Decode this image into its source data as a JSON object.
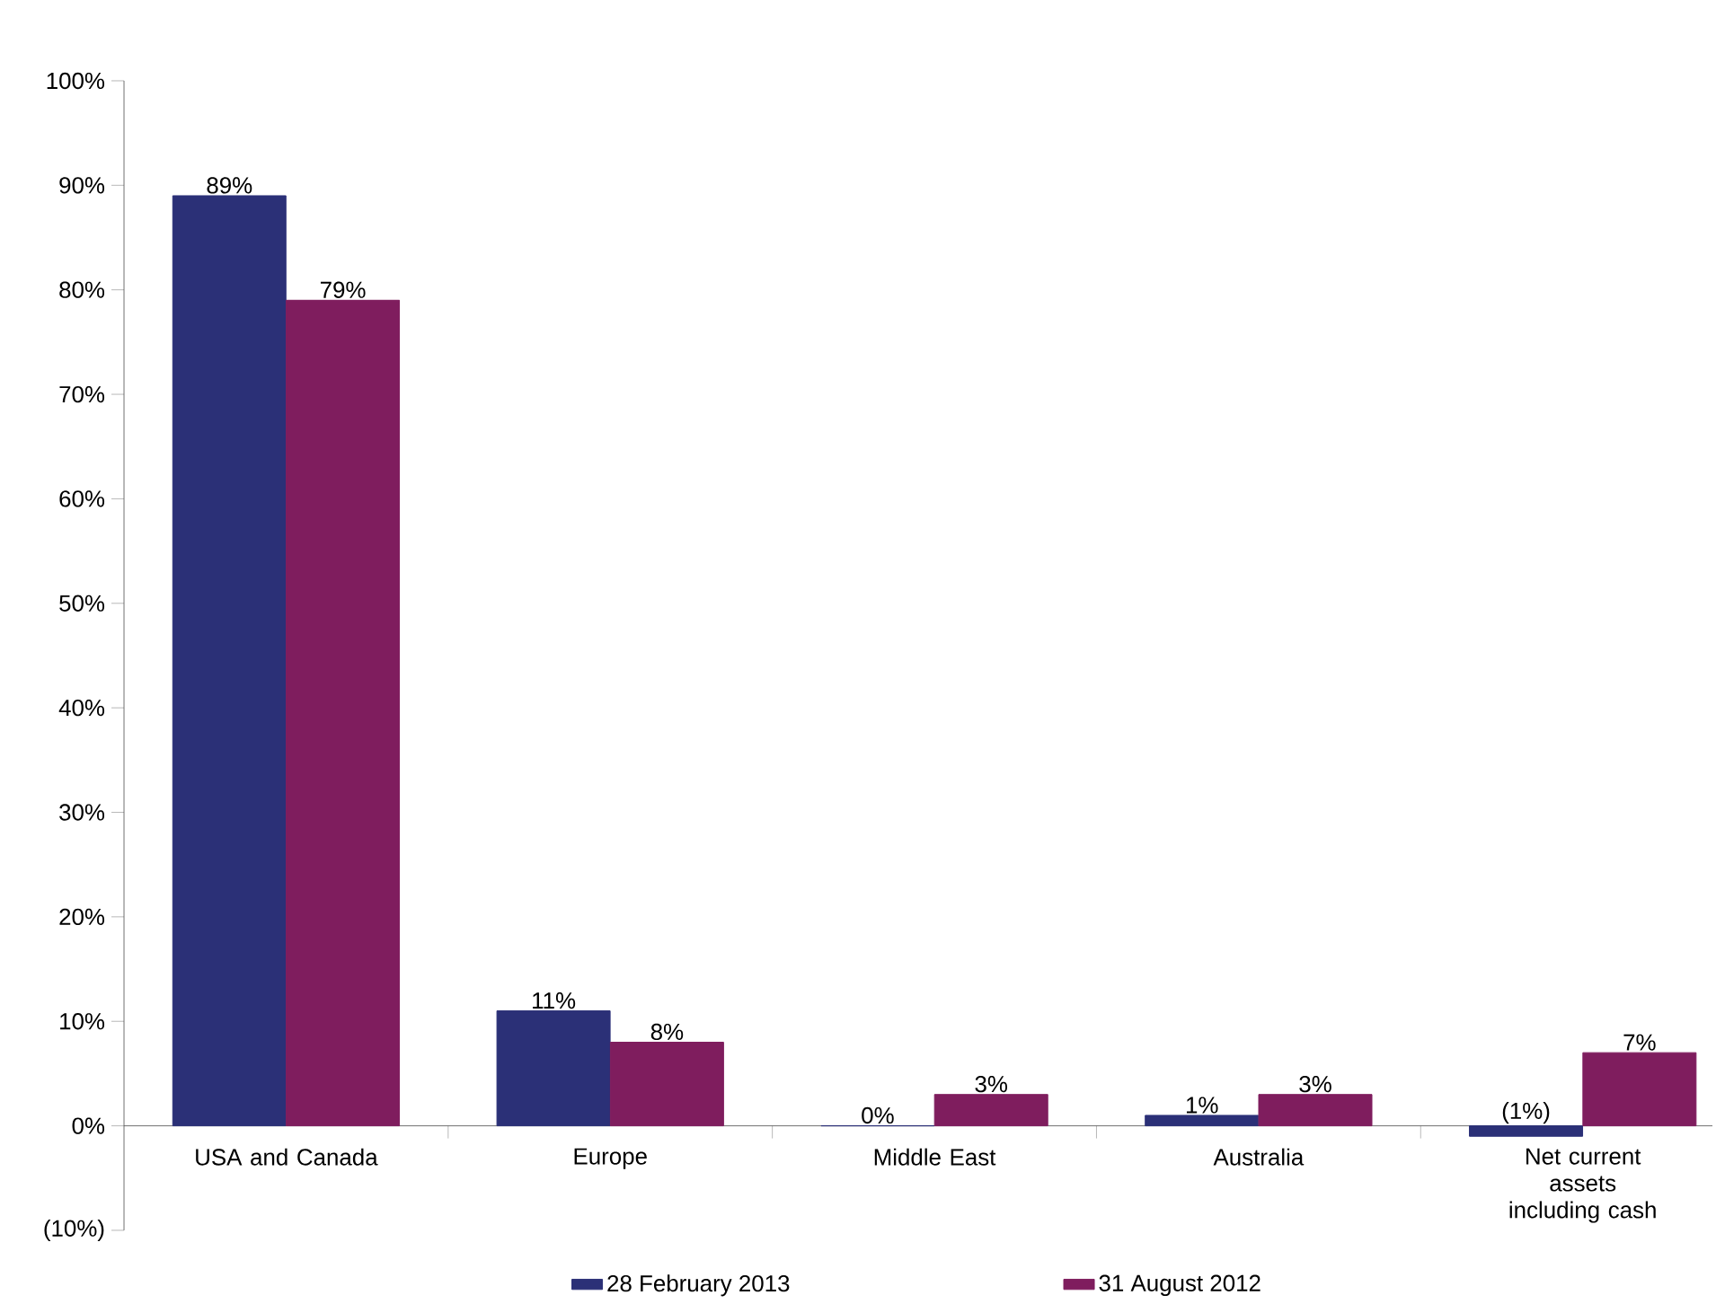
{
  "chart_data": {
    "type": "bar",
    "categories": [
      "USA and Canada",
      "Europe",
      "Middle East",
      "Australia",
      "Net current assets including cash"
    ],
    "series": [
      {
        "name": "28 February 2013",
        "color": "#2b3077",
        "values": [
          89,
          11,
          0,
          1,
          -1
        ],
        "value_labels": [
          "89%",
          "11%",
          "0%",
          "1%",
          "(1%)"
        ]
      },
      {
        "name": "31 August 2012",
        "color": "#7f1d5e",
        "values": [
          79,
          8,
          3,
          3,
          7
        ],
        "value_labels": [
          "79%",
          "8%",
          "3%",
          "3%",
          "7%"
        ]
      }
    ],
    "ylim": [
      -10,
      100
    ],
    "yticks": [
      {
        "value": -10,
        "label": "(10%)"
      },
      {
        "value": 0,
        "label": "0%"
      },
      {
        "value": 10,
        "label": "10%"
      },
      {
        "value": 20,
        "label": "20%"
      },
      {
        "value": 30,
        "label": "30%"
      },
      {
        "value": 40,
        "label": "40%"
      },
      {
        "value": 50,
        "label": "50%"
      },
      {
        "value": 60,
        "label": "60%"
      },
      {
        "value": 70,
        "label": "70%"
      },
      {
        "value": 80,
        "label": "80%"
      },
      {
        "value": 90,
        "label": "90%"
      },
      {
        "value": 100,
        "label": "100%"
      }
    ],
    "legend": "bottom"
  }
}
